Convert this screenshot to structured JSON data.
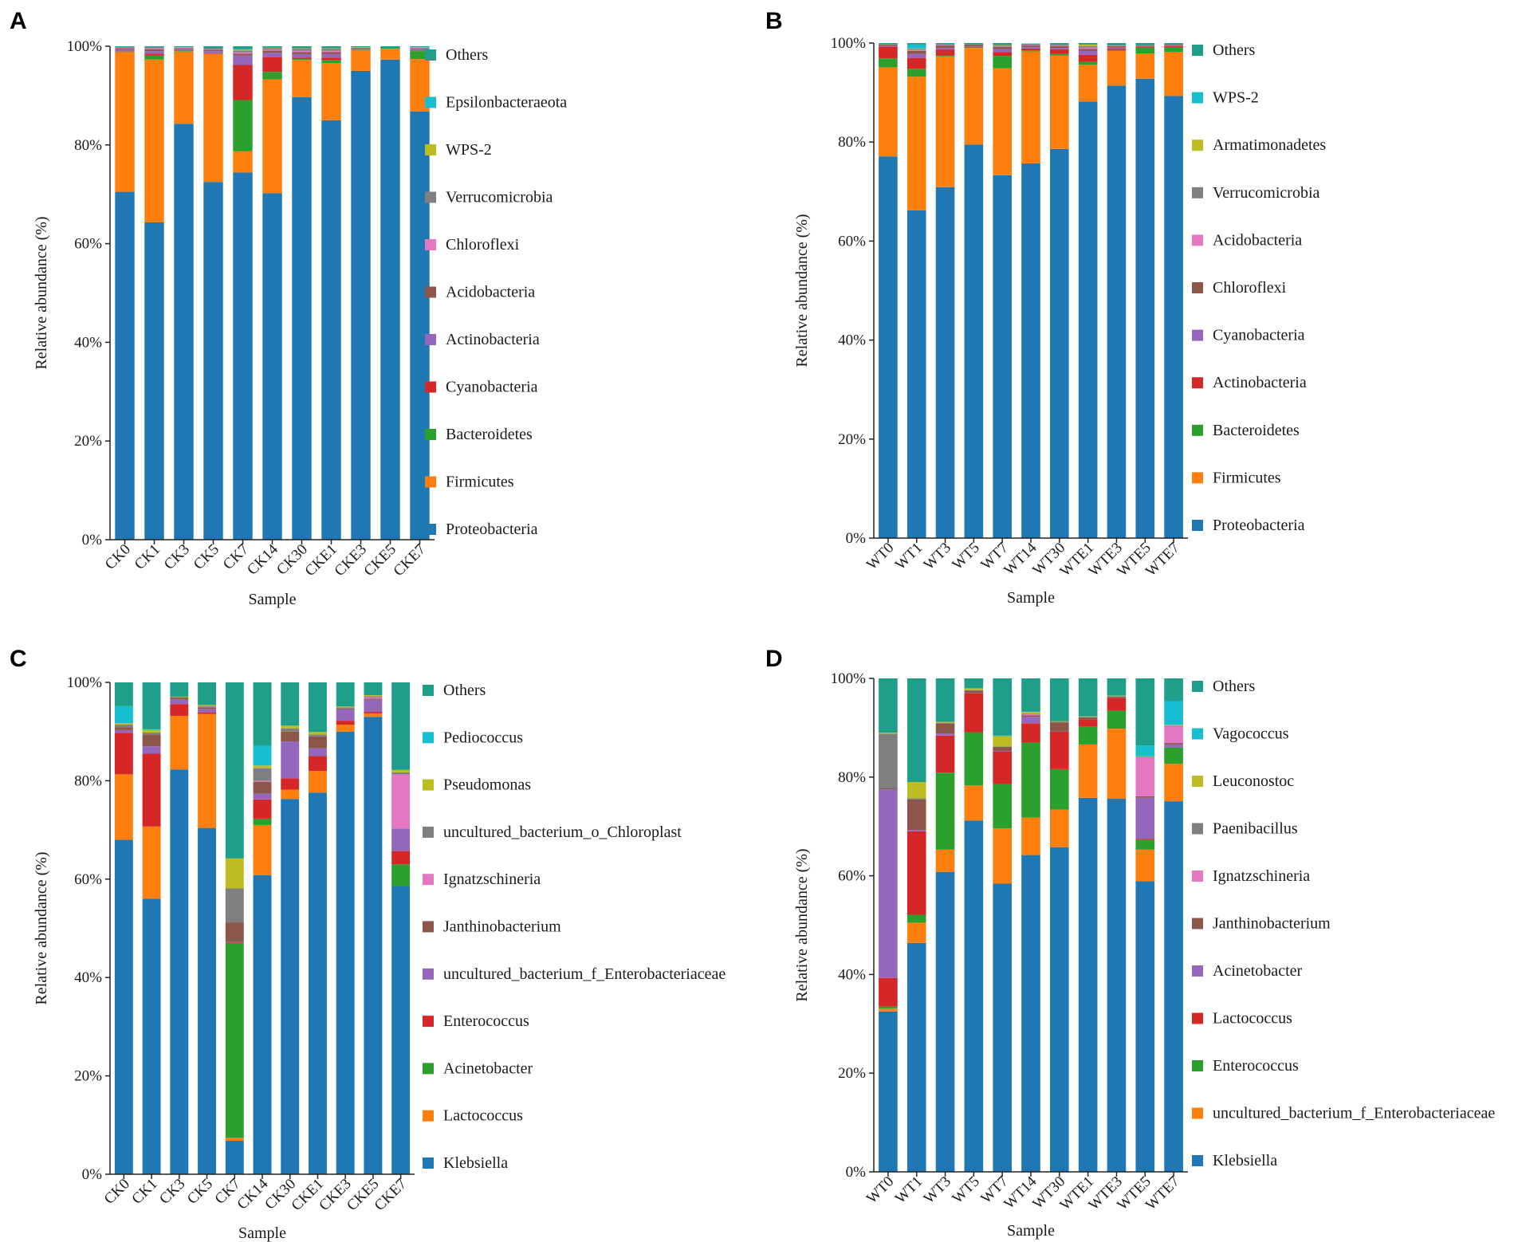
{
  "chart_data": [
    {
      "panel": "A",
      "type": "bar",
      "stacked": true,
      "xlabel": "Sample",
      "ylabel": "Relative abundance (%)",
      "ylim": [
        0,
        100
      ],
      "yticks": [
        "0%",
        "20%",
        "40%",
        "60%",
        "80%",
        "100%"
      ],
      "categories": [
        "CK0",
        "CK1",
        "CK3",
        "CK5",
        "CK7",
        "CK14",
        "CK30",
        "CKE1",
        "CKE3",
        "CKE5",
        "CKE7"
      ],
      "legend": [
        "Others",
        "Epsilonbacteraeota",
        "WPS-2",
        "Verrucomicrobia",
        "Chloroflexi",
        "Acidobacteria",
        "Actinobacteria",
        "Cyanobacteria",
        "Bacteroidetes",
        "Firmicutes",
        "Proteobacteria"
      ],
      "series": [
        {
          "name": "Proteobacteria",
          "color": "#1f77b4",
          "values": [
            70.5,
            64.3,
            84.3,
            72.5,
            74.4,
            70.2,
            89.7,
            85.0,
            95.0,
            97.3,
            86.8
          ]
        },
        {
          "name": "Firmicutes",
          "color": "#ff7f0e",
          "values": [
            28.3,
            33.0,
            14.6,
            25.9,
            4.3,
            23.1,
            7.5,
            11.6,
            4.2,
            2.2,
            10.6
          ]
        },
        {
          "name": "Bacteroidetes",
          "color": "#2ca02c",
          "values": [
            0.1,
            0.8,
            0.1,
            0.1,
            10.4,
            1.5,
            0.2,
            0.6,
            0.1,
            0.1,
            1.6
          ]
        },
        {
          "name": "Cyanobacteria",
          "color": "#d62728",
          "values": [
            0.1,
            0.4,
            0.1,
            0.1,
            7.1,
            3.0,
            0.3,
            0.5,
            0.1,
            0.0,
            0.1
          ]
        },
        {
          "name": "Actinobacteria",
          "color": "#9467bd",
          "values": [
            0.4,
            0.5,
            0.2,
            0.4,
            1.9,
            0.9,
            0.7,
            0.7,
            0.1,
            0.0,
            0.2
          ]
        },
        {
          "name": "Acidobacteria",
          "color": "#8c564b",
          "values": [
            0.2,
            0.4,
            0.2,
            0.3,
            0.4,
            0.4,
            0.4,
            0.4,
            0.1,
            0.0,
            0.2
          ]
        },
        {
          "name": "Chloroflexi",
          "color": "#e377c2",
          "values": [
            0.1,
            0.2,
            0.1,
            0.1,
            0.3,
            0.2,
            0.3,
            0.3,
            0.0,
            0.0,
            0.1
          ]
        },
        {
          "name": "Verrucomicrobia",
          "color": "#7f7f7f",
          "values": [
            0.1,
            0.2,
            0.1,
            0.2,
            0.3,
            0.3,
            0.4,
            0.4,
            0.1,
            0.0,
            0.1
          ]
        },
        {
          "name": "WPS-2",
          "color": "#bcbd22",
          "values": [
            0.0,
            0.0,
            0.1,
            0.0,
            0.2,
            0.1,
            0.1,
            0.1,
            0.1,
            0.0,
            0.1
          ]
        },
        {
          "name": "Epsilonbacteraeota",
          "color": "#17becf",
          "values": [
            0.0,
            0.0,
            0.0,
            0.0,
            0.1,
            0.0,
            0.0,
            0.0,
            0.0,
            0.0,
            0.0
          ]
        },
        {
          "name": "Others",
          "color": "#1f9e89",
          "values": [
            0.2,
            0.2,
            0.2,
            0.4,
            0.6,
            0.3,
            0.4,
            0.4,
            0.2,
            0.4,
            0.2
          ]
        }
      ]
    },
    {
      "panel": "B",
      "type": "bar",
      "stacked": true,
      "xlabel": "Sample",
      "ylabel": "Relative abundance (%)",
      "ylim": [
        0,
        100
      ],
      "yticks": [
        "0%",
        "20%",
        "40%",
        "60%",
        "80%",
        "100%"
      ],
      "categories": [
        "WT0",
        "WT1",
        "WT3",
        "WT5",
        "WT7",
        "WT14",
        "WT30",
        "WTE1",
        "WTE3",
        "WTE5",
        "WTE7"
      ],
      "legend": [
        "Others",
        "WPS-2",
        "Armatimonadetes",
        "Verrucomicrobia",
        "Acidobacteria",
        "Chloroflexi",
        "Cyanobacteria",
        "Actinobacteria",
        "Bacteroidetes",
        "Firmicutes",
        "Proteobacteria"
      ],
      "series": [
        {
          "name": "Proteobacteria",
          "color": "#1f77b4",
          "values": [
            77.1,
            66.2,
            70.9,
            79.5,
            73.3,
            75.7,
            78.6,
            88.2,
            91.4,
            92.8,
            89.3
          ]
        },
        {
          "name": "Firmicutes",
          "color": "#ff7f0e",
          "values": [
            18.0,
            27.0,
            26.4,
            19.5,
            21.6,
            22.6,
            18.9,
            7.4,
            7.0,
            5.1,
            8.9
          ]
        },
        {
          "name": "Bacteroidetes",
          "color": "#2ca02c",
          "values": [
            1.8,
            1.6,
            0.2,
            0.1,
            2.5,
            0.2,
            0.3,
            0.6,
            0.2,
            1.2,
            1.0
          ]
        },
        {
          "name": "Actinobacteria",
          "color": "#d62728",
          "values": [
            2.4,
            2.2,
            1.2,
            0.1,
            0.8,
            0.4,
            0.9,
            1.4,
            0.3,
            0.2,
            0.2
          ]
        },
        {
          "name": "Cyanobacteria",
          "color": "#9467bd",
          "values": [
            0.2,
            0.8,
            0.3,
            0.1,
            0.6,
            0.3,
            0.3,
            0.8,
            0.2,
            0.1,
            0.1
          ]
        },
        {
          "name": "Chloroflexi",
          "color": "#8c564b",
          "values": [
            0.2,
            0.6,
            0.5,
            0.3,
            0.4,
            0.3,
            0.4,
            0.4,
            0.3,
            0.1,
            0.1
          ]
        },
        {
          "name": "Acidobacteria",
          "color": "#e377c2",
          "values": [
            0.0,
            0.2,
            0.1,
            0.0,
            0.1,
            0.1,
            0.1,
            0.3,
            0.1,
            0.0,
            0.0
          ]
        },
        {
          "name": "Verrucomicrobia",
          "color": "#7f7f7f",
          "values": [
            0.1,
            0.2,
            0.2,
            0.1,
            0.2,
            0.1,
            0.2,
            0.3,
            0.1,
            0.1,
            0.1
          ]
        },
        {
          "name": "Armatimonadetes",
          "color": "#bcbd22",
          "values": [
            0.0,
            0.1,
            0.0,
            0.0,
            0.1,
            0.0,
            0.0,
            0.3,
            0.0,
            0.0,
            0.0
          ]
        },
        {
          "name": "WPS-2",
          "color": "#17becf",
          "values": [
            0.0,
            0.8,
            0.0,
            0.0,
            0.0,
            0.0,
            0.0,
            0.0,
            0.0,
            0.0,
            0.0
          ]
        },
        {
          "name": "Others",
          "color": "#1f9e89",
          "values": [
            0.2,
            0.3,
            0.2,
            0.3,
            0.4,
            0.2,
            0.3,
            0.3,
            0.4,
            0.4,
            0.3
          ]
        }
      ]
    },
    {
      "panel": "C",
      "type": "bar",
      "stacked": true,
      "xlabel": "Sample",
      "ylabel": "Relative abundance (%)",
      "ylim": [
        0,
        100
      ],
      "yticks": [
        "0%",
        "20%",
        "40%",
        "60%",
        "80%",
        "100%"
      ],
      "categories": [
        "CK0",
        "CK1",
        "CK3",
        "CK5",
        "CK7",
        "CK14",
        "CK30",
        "CKE1",
        "CKE3",
        "CKE5",
        "CKE7"
      ],
      "legend": [
        "Others",
        "Pediococcus",
        "Pseudomonas",
        "uncultured_bacterium_o_Chloroplast",
        "Ignatzschineria",
        "Janthinobacterium",
        "uncultured_bacterium_f_Enterobacteriaceae",
        "Enterococcus",
        "Acinetobacter",
        "Lactococcus",
        "Klebsiella"
      ],
      "series": [
        {
          "name": "Klebsiella",
          "color": "#1f77b4",
          "values": [
            68.0,
            56.0,
            82.3,
            70.4,
            6.8,
            60.8,
            76.3,
            77.6,
            90.0,
            93.0,
            58.6
          ]
        },
        {
          "name": "Lactococcus",
          "color": "#ff7f0e",
          "values": [
            13.3,
            14.7,
            10.9,
            23.2,
            0.6,
            10.2,
            1.9,
            4.4,
            1.4,
            0.7,
            0.0
          ]
        },
        {
          "name": "Acinetobacter",
          "color": "#2ca02c",
          "values": [
            0.0,
            0.0,
            0.0,
            0.0,
            39.6,
            1.3,
            0.0,
            0.0,
            0.0,
            0.0,
            4.4
          ]
        },
        {
          "name": "Enterococcus",
          "color": "#d62728",
          "values": [
            8.4,
            14.8,
            2.4,
            0.3,
            0.1,
            3.9,
            2.3,
            3.0,
            0.8,
            0.3,
            2.7
          ]
        },
        {
          "name": "uncultured_bacterium_f_Enterobacteriaceae",
          "color": "#9467bd",
          "values": [
            0.6,
            1.5,
            1.0,
            0.7,
            0.1,
            1.2,
            7.5,
            1.6,
            2.3,
            2.5,
            4.6
          ]
        },
        {
          "name": "Janthinobacterium",
          "color": "#8c564b",
          "values": [
            0.6,
            2.4,
            0.3,
            0.3,
            4.0,
            2.4,
            2.0,
            2.4,
            0.2,
            0.2,
            0.0
          ]
        },
        {
          "name": "Ignatzschineria",
          "color": "#e377c2",
          "values": [
            0.0,
            0.0,
            0.0,
            0.1,
            0.0,
            0.2,
            0.0,
            0.0,
            0.0,
            0.3,
            11.0
          ]
        },
        {
          "name": "uncultured_bacterium_o_Chloroplast",
          "color": "#7f7f7f",
          "values": [
            0.5,
            0.4,
            0.1,
            0.2,
            6.9,
            2.5,
            0.6,
            0.4,
            0.2,
            0.2,
            0.4
          ]
        },
        {
          "name": "Pseudomonas",
          "color": "#bcbd22",
          "values": [
            0.3,
            0.5,
            0.1,
            0.2,
            6.1,
            0.6,
            0.6,
            0.5,
            0.2,
            0.2,
            0.5
          ]
        },
        {
          "name": "Pediococcus",
          "color": "#17becf",
          "values": [
            3.5,
            0.2,
            0.0,
            0.0,
            0.0,
            4.0,
            0.0,
            0.0,
            0.0,
            0.0,
            0.0
          ]
        },
        {
          "name": "Others",
          "color": "#1f9e89",
          "values": [
            4.8,
            9.5,
            2.9,
            4.6,
            35.8,
            12.9,
            8.8,
            10.1,
            4.9,
            2.6,
            17.8
          ]
        }
      ]
    },
    {
      "panel": "D",
      "type": "bar",
      "stacked": true,
      "xlabel": "Sample",
      "ylabel": "Relative abundance (%)",
      "ylim": [
        0,
        100
      ],
      "yticks": [
        "0%",
        "20%",
        "40%",
        "60%",
        "80%",
        "100%"
      ],
      "categories": [
        "WT0",
        "WT1",
        "WT3",
        "WT5",
        "WT7",
        "WT14",
        "WT30",
        "WTE1",
        "WTE3",
        "WTE5",
        "WTE7"
      ],
      "legend": [
        "Others",
        "Vagococcus",
        "Leuconostoc",
        "Paenibacillus",
        "Ignatzschineria",
        "Janthinobacterium",
        "Acinetobacter",
        "Lactococcus",
        "Enterococcus",
        "uncultured_bacterium_f_Enterobacteriaceae",
        "Klebsiella"
      ],
      "series": [
        {
          "name": "Klebsiella",
          "color": "#1f77b4",
          "values": [
            32.5,
            46.4,
            60.8,
            71.2,
            58.4,
            64.2,
            65.8,
            75.8,
            75.6,
            58.9,
            75.1
          ]
        },
        {
          "name": "uncultured_bacterium_f_Enterobacteriaceae",
          "color": "#ff7f0e",
          "values": [
            0.6,
            4.1,
            4.5,
            7.1,
            11.2,
            7.6,
            7.6,
            10.8,
            14.2,
            6.4,
            7.6
          ]
        },
        {
          "name": "Enterococcus",
          "color": "#2ca02c",
          "values": [
            0.4,
            1.6,
            15.6,
            10.8,
            9.0,
            15.2,
            8.2,
            3.6,
            3.6,
            2.0,
            3.3
          ]
        },
        {
          "name": "Lactococcus",
          "color": "#d62728",
          "values": [
            5.8,
            16.9,
            7.5,
            7.9,
            6.6,
            3.9,
            7.6,
            1.5,
            2.6,
            0.2,
            0.0
          ]
        },
        {
          "name": "Acinetobacter",
          "color": "#9467bd",
          "values": [
            38.2,
            0.3,
            0.4,
            0.1,
            0.1,
            1.3,
            0.0,
            0.0,
            0.0,
            8.3,
            0.6
          ]
        },
        {
          "name": "Janthinobacterium",
          "color": "#8c564b",
          "values": [
            0.2,
            6.2,
            2.1,
            0.4,
            0.8,
            0.3,
            1.9,
            0.4,
            0.3,
            0.3,
            0.3
          ]
        },
        {
          "name": "Ignatzschineria",
          "color": "#e377c2",
          "values": [
            0.0,
            0.0,
            0.0,
            0.0,
            0.0,
            0.3,
            0.0,
            0.0,
            0.0,
            7.9,
            3.5
          ]
        },
        {
          "name": "Paenibacillus",
          "color": "#7f7f7f",
          "values": [
            11.1,
            0.2,
            0.1,
            0.1,
            0.1,
            0.1,
            0.1,
            0.1,
            0.1,
            0.1,
            0.1
          ]
        },
        {
          "name": "Leuconostoc",
          "color": "#bcbd22",
          "values": [
            0.2,
            3.3,
            0.2,
            0.4,
            2.1,
            0.3,
            0.1,
            0.1,
            0.1,
            0.1,
            0.1
          ]
        },
        {
          "name": "Vagococcus",
          "color": "#17becf",
          "values": [
            0.0,
            0.0,
            0.0,
            0.0,
            0.1,
            0.1,
            0.0,
            0.0,
            0.0,
            2.2,
            4.8
          ]
        },
        {
          "name": "Others",
          "color": "#1f9e89",
          "values": [
            11.0,
            21.0,
            8.8,
            2.0,
            11.6,
            6.7,
            8.7,
            7.7,
            3.5,
            13.6,
            4.6
          ]
        }
      ]
    }
  ]
}
